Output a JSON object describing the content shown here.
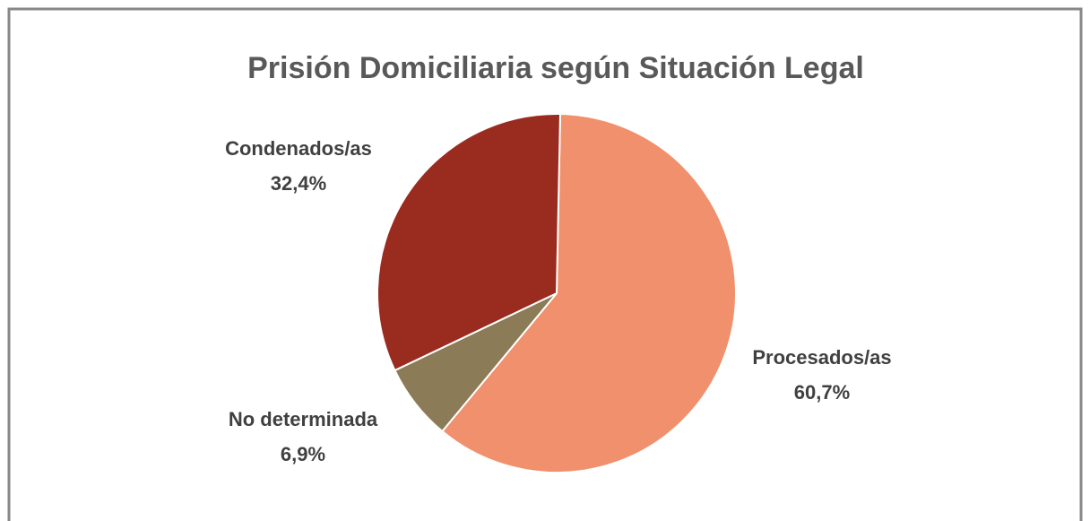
{
  "chart_data": {
    "type": "pie",
    "title": "Prisión Domiciliaria según Situación Legal",
    "categories": [
      "Procesados/as",
      "No determinada",
      "Condenados/as"
    ],
    "values": [
      60.7,
      6.9,
      32.4
    ],
    "value_labels": [
      "60,7%",
      "6,9%",
      "32,4%"
    ],
    "colors": [
      "#F0906C",
      "#8B7B57",
      "#9A2B1F"
    ]
  }
}
